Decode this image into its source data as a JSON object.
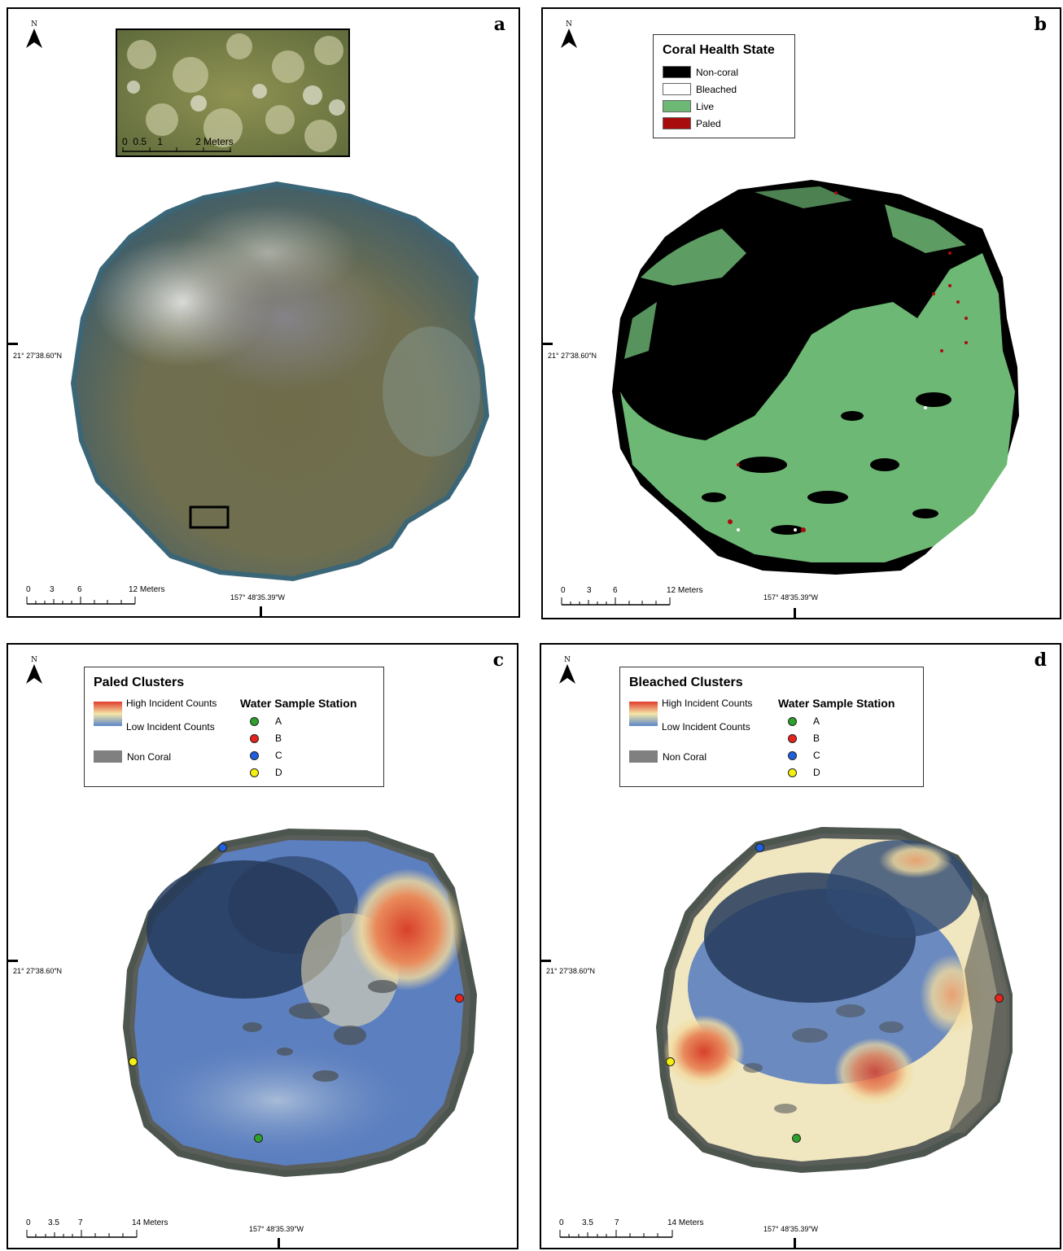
{
  "panels": {
    "a": {
      "label": "a",
      "north": "N",
      "lat": "21° 27′38.60″N",
      "lon": "157° 48′35.39″W",
      "scale": {
        "ticks": [
          "0",
          "3",
          "6",
          "12 Meters"
        ]
      },
      "inset_scale": {
        "ticks": [
          "0",
          "0.5",
          "1",
          "2 Meters"
        ]
      }
    },
    "b": {
      "label": "b",
      "north": "N",
      "lat": "21° 27′38.60″N",
      "lon": "157° 48′35.39″W",
      "scale": {
        "ticks": [
          "0",
          "3",
          "6",
          "12 Meters"
        ]
      },
      "legend": {
        "title": "Coral Health State",
        "items": [
          {
            "label": "Non-coral",
            "color": "#000000"
          },
          {
            "label": "Bleached",
            "color": "#ffffff"
          },
          {
            "label": "Live",
            "color": "#6db874"
          },
          {
            "label": "Paled",
            "color": "#a90c0c"
          }
        ]
      }
    },
    "c": {
      "label": "c",
      "north": "N",
      "lat": "21° 27′38.60″N",
      "lon": "157° 48′35.39″W",
      "scale": {
        "ticks": [
          "0",
          "3.5",
          "7",
          "14 Meters"
        ]
      },
      "legend": {
        "title": "Paled Clusters",
        "high": "High Incident Counts",
        "low": "Low Incident Counts",
        "noncoral": "Non Coral",
        "station_title": "Water Sample Station",
        "stations": [
          {
            "label": "A",
            "color": "#2ea02c"
          },
          {
            "label": "B",
            "color": "#e8231b"
          },
          {
            "label": "C",
            "color": "#1f5fe0"
          },
          {
            "label": "D",
            "color": "#f5f010"
          }
        ]
      }
    },
    "d": {
      "label": "d",
      "north": "N",
      "lat": "21° 27′38.60″N",
      "lon": "157° 48′35.39″W",
      "scale": {
        "ticks": [
          "0",
          "3.5",
          "7",
          "14 Meters"
        ]
      },
      "legend": {
        "title": "Bleached Clusters",
        "high": "High Incident Counts",
        "low": "Low Incident Counts",
        "noncoral": "Non Coral",
        "station_title": "Water Sample Station",
        "stations": [
          {
            "label": "A",
            "color": "#2ea02c"
          },
          {
            "label": "B",
            "color": "#e8231b"
          },
          {
            "label": "C",
            "color": "#1f5fe0"
          },
          {
            "label": "D",
            "color": "#f5f010"
          }
        ]
      }
    }
  }
}
